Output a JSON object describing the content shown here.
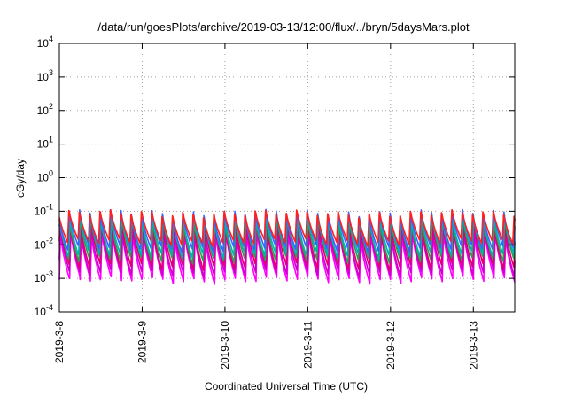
{
  "chart_data": {
    "type": "line",
    "title": "/data/run/goesPlots/archive/2019-03-13/12:00/flux/../bryn/5daysMars.plot",
    "xlabel": "Coordinated Universal Time (UTC)",
    "ylabel": "cGy/day",
    "y_scale": "log",
    "ylim": [
      0.0001,
      10000
    ],
    "y_ticks": [
      {
        "base": "10",
        "exp": "-4"
      },
      {
        "base": "10",
        "exp": "-3"
      },
      {
        "base": "10",
        "exp": "-2"
      },
      {
        "base": "10",
        "exp": "-1"
      },
      {
        "base": "10",
        "exp": "0"
      },
      {
        "base": "10",
        "exp": "1"
      },
      {
        "base": "10",
        "exp": "2"
      },
      {
        "base": "10",
        "exp": "3"
      },
      {
        "base": "10",
        "exp": "4"
      }
    ],
    "x_range_days": [
      "2019-03-08",
      "2019-03-13T12:00"
    ],
    "x_tick_labels": [
      "2019-3-8",
      "2019-3-9",
      "2019-3-10",
      "2019-3-11",
      "2019-3-12",
      "2019-3-13"
    ],
    "grid": true,
    "oscillation_period_hours": 3,
    "series": [
      {
        "color": "#ff00ff",
        "peak": 0.022,
        "trough": 0.0009
      },
      {
        "color": "#cc00cc",
        "peak": 0.03,
        "trough": 0.0014
      },
      {
        "color": "#e0006a",
        "peak": 0.045,
        "trough": 0.0022
      },
      {
        "color": "#2a9d57",
        "peak": 0.06,
        "trough": 0.0035
      },
      {
        "color": "#00b3b3",
        "peak": 0.075,
        "trough": 0.005
      },
      {
        "color": "#4060ff",
        "peak": 0.09,
        "trough": 0.008
      },
      {
        "color": "#ff2020",
        "peak": 0.1,
        "trough": 0.012
      }
    ]
  }
}
